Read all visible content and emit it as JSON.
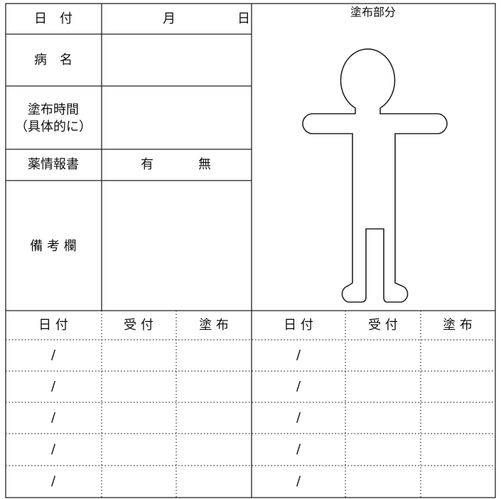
{
  "form": {
    "date_label": "日　付",
    "date_month": "月",
    "date_day": "日",
    "disease_label": "病　名",
    "time_label": [
      "塗布時間",
      "（具体的に）"
    ],
    "info_label": "薬情報書",
    "info_yes": "有",
    "info_no": "無",
    "remarks_label": "備 考 欄",
    "body_title": "塗布部分"
  },
  "log_table": {
    "headers": [
      "日 付",
      "受 付",
      "塗 布",
      "日 付",
      "受 付",
      "塗 布"
    ],
    "rows": [
      [
        "/",
        "/"
      ],
      [
        "/",
        "/"
      ],
      [
        "/",
        "/"
      ],
      [
        "/",
        "/"
      ],
      [
        "/",
        "/"
      ]
    ]
  }
}
